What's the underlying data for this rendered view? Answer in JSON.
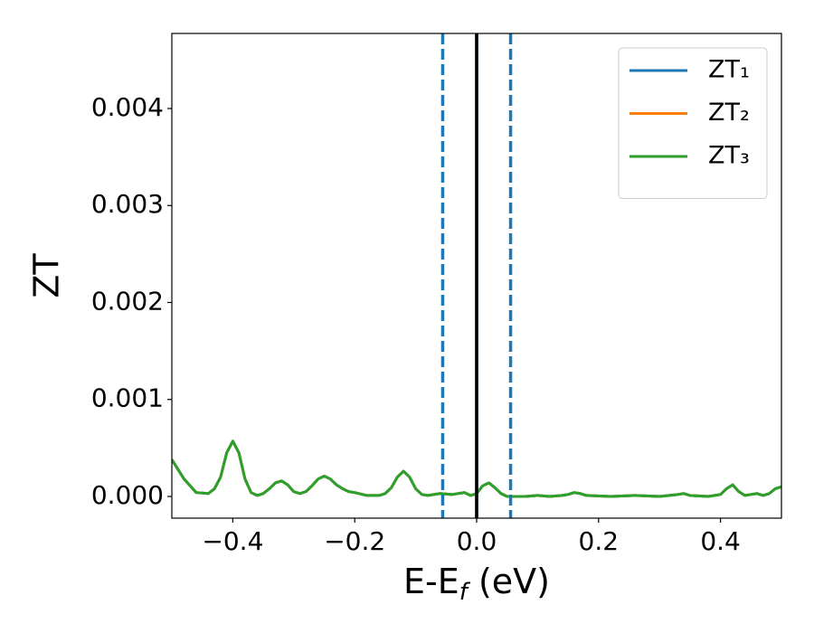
{
  "chart_data": {
    "type": "line",
    "y_label": "ZT",
    "x_label": [
      "E-E",
      "f",
      " (eV)"
    ],
    "xlim": [
      -0.5,
      0.5
    ],
    "ylim": [
      -0.000224,
      0.004774
    ],
    "xticks": [
      {
        "value": -0.4,
        "label": "−0.4"
      },
      {
        "value": -0.2,
        "label": "−0.2"
      },
      {
        "value": 0.0,
        "label": "0.0"
      },
      {
        "value": 0.2,
        "label": "0.2"
      },
      {
        "value": 0.4,
        "label": "0.4"
      }
    ],
    "yticks": [
      {
        "value": 0,
        "label": "0.000"
      },
      {
        "value": 0.001,
        "label": "0.001"
      },
      {
        "value": 0.002,
        "label": "0.002"
      },
      {
        "value": 0.003,
        "label": "0.003"
      },
      {
        "value": 0.004,
        "label": "0.004"
      }
    ],
    "legend": "upper right",
    "vlines": [
      {
        "x": -0.0557,
        "color": "#1f77b4",
        "style": "dashed"
      },
      {
        "x": 0.0557,
        "color": "#1f77b4",
        "style": "dashed"
      },
      {
        "x": 0,
        "color": "#1f77b4",
        "style": "solid"
      },
      {
        "x": 0,
        "color": "#000000",
        "style": "solid"
      }
    ],
    "x": [
      -0.5,
      -0.48,
      -0.46,
      -0.44,
      -0.43,
      -0.42,
      -0.41,
      -0.4,
      -0.39,
      -0.38,
      -0.37,
      -0.36,
      -0.35,
      -0.34,
      -0.33,
      -0.32,
      -0.31,
      -0.3,
      -0.29,
      -0.28,
      -0.27,
      -0.26,
      -0.25,
      -0.24,
      -0.23,
      -0.22,
      -0.21,
      -0.2,
      -0.18,
      -0.16,
      -0.15,
      -0.14,
      -0.13,
      -0.12,
      -0.11,
      -0.1,
      -0.09,
      -0.08,
      -0.06,
      -0.04,
      -0.02,
      -0.01,
      0.0,
      0.01,
      0.02,
      0.03,
      0.04,
      0.05,
      0.08,
      0.1,
      0.12,
      0.14,
      0.15,
      0.16,
      0.17,
      0.18,
      0.22,
      0.26,
      0.3,
      0.33,
      0.34,
      0.35,
      0.38,
      0.4,
      0.41,
      0.42,
      0.43,
      0.44,
      0.45,
      0.46,
      0.47,
      0.48,
      0.49,
      0.5
    ],
    "series": [
      {
        "name": "ZT₁",
        "color": "#1f77b4",
        "values": [
          0.00038,
          0.00018,
          4e-05,
          3e-05,
          8e-05,
          0.0002,
          0.00045,
          0.00057,
          0.00045,
          0.00018,
          4e-05,
          1e-05,
          3e-05,
          8e-05,
          0.00014,
          0.00016,
          0.00012,
          5e-05,
          3e-05,
          5e-05,
          0.00011,
          0.00018,
          0.00021,
          0.00018,
          0.00012,
          8e-05,
          5e-05,
          4e-05,
          1e-05,
          1e-05,
          3e-05,
          9e-05,
          0.0002,
          0.00026,
          0.0002,
          8e-05,
          2e-05,
          1e-05,
          3e-05,
          2e-05,
          4e-05,
          1e-05,
          3e-05,
          0.00011,
          0.00014,
          9e-05,
          3e-05,
          0.0,
          0.0,
          1e-05,
          0.0,
          1e-05,
          2e-05,
          4e-05,
          3e-05,
          1e-05,
          0.0,
          1e-05,
          0.0,
          2e-05,
          3e-05,
          1e-05,
          0.0,
          2e-05,
          8e-05,
          0.00012,
          5e-05,
          1e-05,
          2e-05,
          3e-05,
          1e-05,
          3e-05,
          8e-05,
          0.0001
        ]
      },
      {
        "name": "ZT₂",
        "color": "#ff7f0e",
        "values": [
          0.00038,
          0.00018,
          4e-05,
          3e-05,
          8e-05,
          0.0002,
          0.00045,
          0.00057,
          0.00045,
          0.00018,
          4e-05,
          1e-05,
          3e-05,
          8e-05,
          0.00014,
          0.00016,
          0.00012,
          5e-05,
          3e-05,
          5e-05,
          0.00011,
          0.00018,
          0.00021,
          0.00018,
          0.00012,
          8e-05,
          5e-05,
          4e-05,
          1e-05,
          1e-05,
          3e-05,
          9e-05,
          0.0002,
          0.00026,
          0.0002,
          8e-05,
          2e-05,
          1e-05,
          3e-05,
          2e-05,
          4e-05,
          1e-05,
          3e-05,
          0.00011,
          0.00014,
          9e-05,
          3e-05,
          0.0,
          0.0,
          1e-05,
          0.0,
          1e-05,
          2e-05,
          4e-05,
          3e-05,
          1e-05,
          0.0,
          1e-05,
          0.0,
          2e-05,
          3e-05,
          1e-05,
          0.0,
          2e-05,
          8e-05,
          0.00012,
          5e-05,
          1e-05,
          2e-05,
          3e-05,
          1e-05,
          3e-05,
          8e-05,
          0.0001
        ]
      },
      {
        "name": "ZT₃",
        "color": "#2ca02c",
        "values": [
          0.00038,
          0.00018,
          4e-05,
          3e-05,
          8e-05,
          0.0002,
          0.00045,
          0.00057,
          0.00045,
          0.00018,
          4e-05,
          1e-05,
          3e-05,
          8e-05,
          0.00014,
          0.00016,
          0.00012,
          5e-05,
          3e-05,
          5e-05,
          0.00011,
          0.00018,
          0.00021,
          0.00018,
          0.00012,
          8e-05,
          5e-05,
          4e-05,
          1e-05,
          1e-05,
          3e-05,
          9e-05,
          0.0002,
          0.00026,
          0.0002,
          8e-05,
          2e-05,
          1e-05,
          3e-05,
          2e-05,
          4e-05,
          1e-05,
          3e-05,
          0.00011,
          0.00014,
          9e-05,
          3e-05,
          0.0,
          0.0,
          1e-05,
          0.0,
          1e-05,
          2e-05,
          4e-05,
          3e-05,
          1e-05,
          0.0,
          1e-05,
          0.0,
          2e-05,
          3e-05,
          1e-05,
          0.0,
          2e-05,
          8e-05,
          0.00012,
          5e-05,
          1e-05,
          2e-05,
          3e-05,
          1e-05,
          3e-05,
          8e-05,
          0.0001
        ]
      }
    ]
  }
}
